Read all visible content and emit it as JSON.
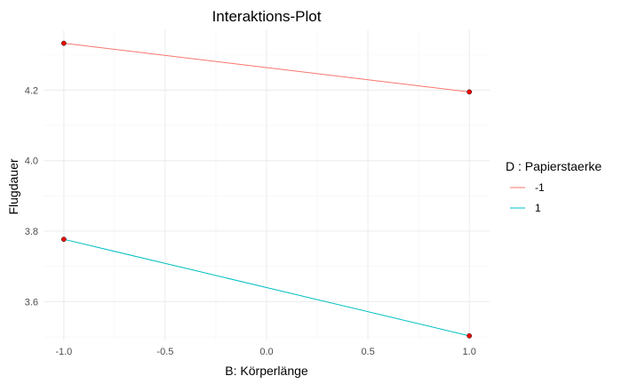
{
  "chart_data": {
    "type": "line",
    "title": "Interaktions-Plot",
    "xlabel": "B: Körperlänge",
    "ylabel": "Flugdauer",
    "xlim": [
      -1.1,
      1.1
    ],
    "ylim": [
      3.49,
      4.37
    ],
    "x_ticks": [
      -1.0,
      -0.5,
      0.0,
      0.5,
      1.0
    ],
    "x_tick_labels": [
      "-1.0",
      "-0.5",
      "0.0",
      "0.5",
      "1.0"
    ],
    "y_ticks": [
      3.6,
      3.8,
      4.0,
      4.2
    ],
    "y_tick_labels": [
      "3.6",
      "3.8",
      "4.0",
      "4.2"
    ],
    "grid": true,
    "legend": {
      "title": "D : Papierstaerke",
      "position": "right"
    },
    "series": [
      {
        "name": "-1",
        "color": "#f8766d",
        "x": [
          -1,
          1
        ],
        "y": [
          4.333,
          4.195
        ]
      },
      {
        "name": "1",
        "color": "#00bfc4",
        "x": [
          -1,
          1
        ],
        "y": [
          3.777,
          3.503
        ]
      }
    ],
    "point_color": "#ff0000"
  }
}
